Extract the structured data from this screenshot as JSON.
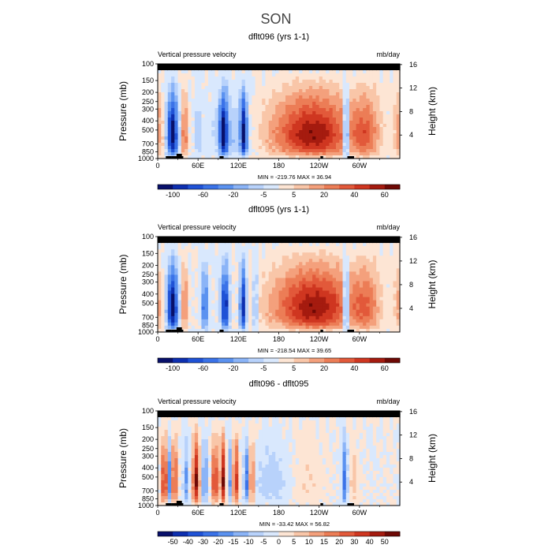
{
  "figure_title": "SON",
  "chart_data": [
    {
      "type": "heatmap",
      "title": "dflt096 (yrs 1-1)",
      "variable": "Vertical pressure velocity",
      "units": "mb/day",
      "ylabel": "Pressure (mb)",
      "y2label": "Height (km)",
      "xticks": [
        "0",
        "60E",
        "120E",
        "180",
        "120W",
        "60W"
      ],
      "xtick_lon": [
        0,
        60,
        120,
        180,
        240,
        300
      ],
      "xlim": [
        0,
        360
      ],
      "yticks": [
        "100",
        "150",
        "200",
        "250",
        "300",
        "400",
        "500",
        "700",
        "850",
        "1000"
      ],
      "ytick_values": [
        100,
        150,
        200,
        250,
        300,
        400,
        500,
        700,
        850,
        1000
      ],
      "ylim": [
        100,
        1000
      ],
      "y2ticks": [
        "16",
        "12",
        "8",
        "4"
      ],
      "y2tick_values": [
        16,
        12,
        8,
        4
      ],
      "stats": "MIN = -219.76   MAX =   36.94",
      "min": -219.76,
      "max": 36.94,
      "colorbar_labels": [
        "-100",
        "-60",
        "-20",
        "-5",
        "5",
        "20",
        "40",
        "60"
      ],
      "colorbar_levels": [
        -100,
        -80,
        -60,
        -40,
        -20,
        -10,
        -5,
        0,
        5,
        10,
        20,
        30,
        40,
        50,
        60
      ],
      "columns": [
        {
          "lon": 22,
          "w": 8,
          "a": -1.0
        },
        {
          "lon": 40,
          "w": 4,
          "a": 0.55
        },
        {
          "lon": 60,
          "w": 4,
          "a": -0.25
        },
        {
          "lon": 98,
          "w": 6,
          "a": -0.85
        },
        {
          "lon": 128,
          "w": 5,
          "a": -0.9
        },
        {
          "lon": 108,
          "w": 30,
          "a": -0.25
        },
        {
          "lon": 230,
          "w": 60,
          "a": 0.85
        },
        {
          "lon": 280,
          "w": 4,
          "a": -1.0
        },
        {
          "lon": 310,
          "w": 20,
          "a": 0.45
        },
        {
          "lon": 0,
          "w": 8,
          "a": 0.35
        }
      ]
    },
    {
      "type": "heatmap",
      "title": "dflt095 (yrs 1-1)",
      "variable": "Vertical pressure velocity",
      "units": "mb/day",
      "ylabel": "Pressure (mb)",
      "y2label": "Height (km)",
      "xticks": [
        "0",
        "60E",
        "120E",
        "180",
        "120W",
        "60W"
      ],
      "xtick_lon": [
        0,
        60,
        120,
        180,
        240,
        300
      ],
      "xlim": [
        0,
        360
      ],
      "yticks": [
        "100",
        "150",
        "200",
        "250",
        "300",
        "400",
        "500",
        "700",
        "850",
        "1000"
      ],
      "ytick_values": [
        100,
        150,
        200,
        250,
        300,
        400,
        500,
        700,
        850,
        1000
      ],
      "ylim": [
        100,
        1000
      ],
      "y2ticks": [
        "16",
        "12",
        "8",
        "4"
      ],
      "y2tick_values": [
        16,
        12,
        8,
        4
      ],
      "stats": "MIN = -218.54   MAX =   39.65",
      "min": -218.54,
      "max": 39.65,
      "colorbar_labels": [
        "-100",
        "-60",
        "-20",
        "-5",
        "5",
        "20",
        "40",
        "60"
      ],
      "colorbar_levels": [
        -100,
        -80,
        -60,
        -40,
        -20,
        -10,
        -5,
        0,
        5,
        10,
        20,
        30,
        40,
        50,
        60
      ],
      "columns": [
        {
          "lon": 22,
          "w": 8,
          "a": -1.0
        },
        {
          "lon": 40,
          "w": 4,
          "a": 0.5
        },
        {
          "lon": 70,
          "w": 5,
          "a": -0.6
        },
        {
          "lon": 100,
          "w": 6,
          "a": -0.9
        },
        {
          "lon": 127,
          "w": 5,
          "a": -0.9
        },
        {
          "lon": 145,
          "w": 4,
          "a": -0.4
        },
        {
          "lon": 232,
          "w": 60,
          "a": 0.85
        },
        {
          "lon": 280,
          "w": 4,
          "a": -1.0
        },
        {
          "lon": 310,
          "w": 20,
          "a": 0.4
        },
        {
          "lon": 0,
          "w": 8,
          "a": 0.3
        }
      ]
    },
    {
      "type": "heatmap",
      "title": "dflt096 - dflt095",
      "variable": "Vertical pressure velocity",
      "units": "mb/day",
      "ylabel": "Pressure (mb)",
      "y2label": "Height (km)",
      "xticks": [
        "0",
        "60E",
        "120E",
        "180",
        "120W",
        "60W"
      ],
      "xtick_lon": [
        0,
        60,
        120,
        180,
        240,
        300
      ],
      "xlim": [
        0,
        360
      ],
      "yticks": [
        "100",
        "150",
        "200",
        "250",
        "300",
        "400",
        "500",
        "700",
        "850",
        "1000"
      ],
      "ytick_values": [
        100,
        150,
        200,
        250,
        300,
        400,
        500,
        700,
        850,
        1000
      ],
      "ylim": [
        100,
        1000
      ],
      "y2ticks": [
        "16",
        "12",
        "8",
        "4"
      ],
      "y2tick_values": [
        16,
        12,
        8,
        4
      ],
      "stats": "MIN =  -33.42   MAX =   56.82",
      "min": -33.42,
      "max": 56.82,
      "colorbar_labels": [
        "-50",
        "-40",
        "-30",
        "-20",
        "-15",
        "-10",
        "-5",
        "0",
        "5",
        "10",
        "15",
        "20",
        "30",
        "40",
        "50"
      ],
      "colorbar_levels": [
        -50,
        -40,
        -30,
        -20,
        -15,
        -10,
        -5,
        0,
        5,
        10,
        15,
        20,
        30,
        40,
        50
      ],
      "columns": [
        {
          "lon": 10,
          "w": 4,
          "a": 0.8
        },
        {
          "lon": 18,
          "w": 3,
          "a": -0.5
        },
        {
          "lon": 25,
          "w": 4,
          "a": 0.7
        },
        {
          "lon": 42,
          "w": 4,
          "a": -0.4
        },
        {
          "lon": 57,
          "w": 5,
          "a": 0.9
        },
        {
          "lon": 70,
          "w": 4,
          "a": -0.5
        },
        {
          "lon": 85,
          "w": 4,
          "a": 0.8
        },
        {
          "lon": 97,
          "w": 4,
          "a": 0.9
        },
        {
          "lon": 107,
          "w": 3,
          "a": -0.4
        },
        {
          "lon": 116,
          "w": 4,
          "a": 0.8
        },
        {
          "lon": 132,
          "w": 4,
          "a": -0.5
        },
        {
          "lon": 140,
          "w": 4,
          "a": 0.6
        },
        {
          "lon": 170,
          "w": 30,
          "a": -0.2
        },
        {
          "lon": 220,
          "w": 25,
          "a": 0.12
        },
        {
          "lon": 278,
          "w": 4,
          "a": -0.6
        },
        {
          "lon": 292,
          "w": 6,
          "a": 0.2
        }
      ]
    }
  ]
}
